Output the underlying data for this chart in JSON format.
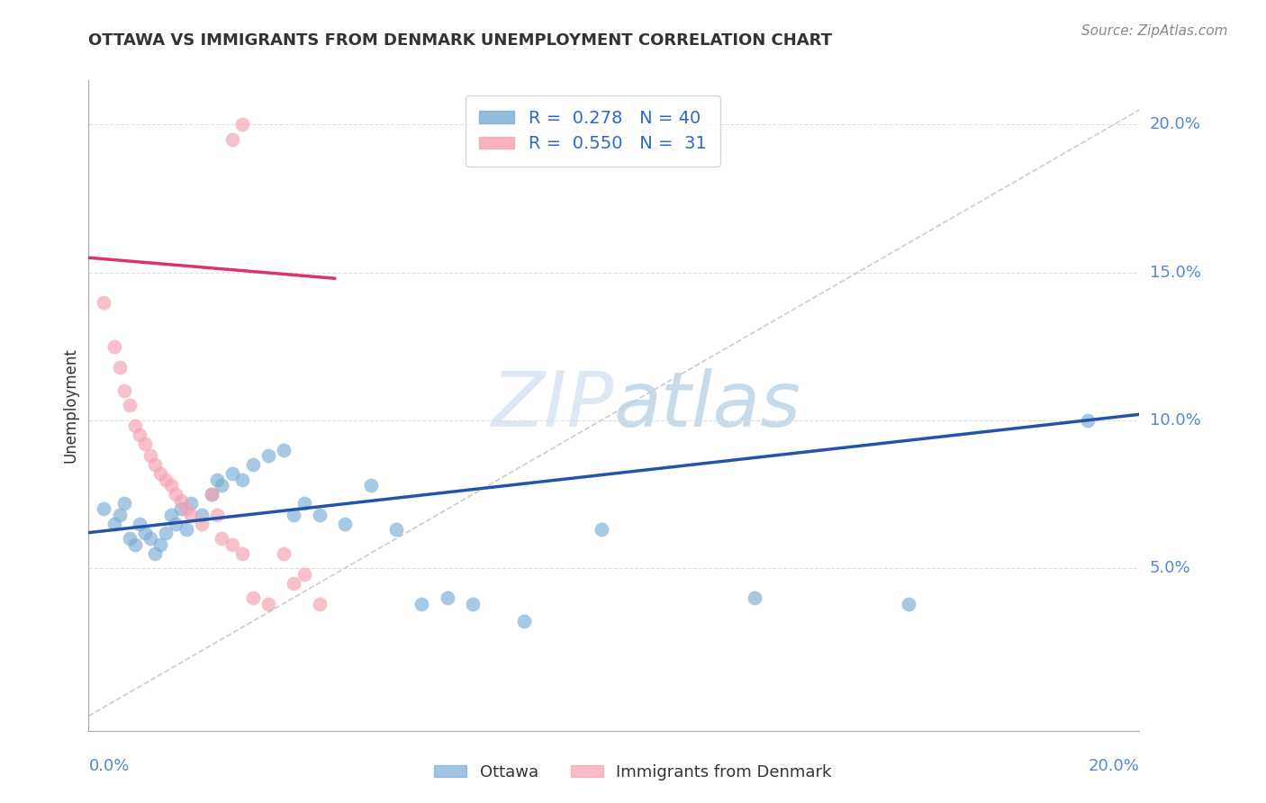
{
  "title": "OTTAWA VS IMMIGRANTS FROM DENMARK UNEMPLOYMENT CORRELATION CHART",
  "source": "Source: ZipAtlas.com",
  "ylabel": "Unemployment",
  "ytick_labels": [
    "5.0%",
    "10.0%",
    "15.0%",
    "20.0%"
  ],
  "ytick_values": [
    0.05,
    0.1,
    0.15,
    0.2
  ],
  "xlim": [
    0.0,
    0.205
  ],
  "ylim": [
    -0.005,
    0.215
  ],
  "ottawa_color": "#7aadd4",
  "denmark_color": "#f4a0b0",
  "trendline_ottawa_color": "#2255aa",
  "trendline_denmark_color": "#dd3366",
  "diagonal_color": "#cccccc",
  "watermark_zip": "ZIP",
  "watermark_atlas": "atlas",
  "background_color": "#ffffff",
  "grid_color": "#dddddd",
  "ottawa_points": [
    [
      0.003,
      0.07
    ],
    [
      0.005,
      0.065
    ],
    [
      0.006,
      0.068
    ],
    [
      0.007,
      0.072
    ],
    [
      0.008,
      0.06
    ],
    [
      0.009,
      0.058
    ],
    [
      0.01,
      0.065
    ],
    [
      0.011,
      0.062
    ],
    [
      0.012,
      0.06
    ],
    [
      0.013,
      0.055
    ],
    [
      0.014,
      0.058
    ],
    [
      0.015,
      0.062
    ],
    [
      0.016,
      0.068
    ],
    [
      0.017,
      0.065
    ],
    [
      0.018,
      0.07
    ],
    [
      0.019,
      0.063
    ],
    [
      0.02,
      0.072
    ],
    [
      0.022,
      0.068
    ],
    [
      0.024,
      0.075
    ],
    [
      0.025,
      0.08
    ],
    [
      0.026,
      0.078
    ],
    [
      0.028,
      0.082
    ],
    [
      0.03,
      0.08
    ],
    [
      0.032,
      0.085
    ],
    [
      0.035,
      0.088
    ],
    [
      0.038,
      0.09
    ],
    [
      0.04,
      0.068
    ],
    [
      0.042,
      0.072
    ],
    [
      0.045,
      0.068
    ],
    [
      0.05,
      0.065
    ],
    [
      0.055,
      0.078
    ],
    [
      0.06,
      0.063
    ],
    [
      0.065,
      0.038
    ],
    [
      0.07,
      0.04
    ],
    [
      0.075,
      0.038
    ],
    [
      0.085,
      0.032
    ],
    [
      0.1,
      0.063
    ],
    [
      0.13,
      0.04
    ],
    [
      0.16,
      0.038
    ],
    [
      0.195,
      0.1
    ]
  ],
  "denmark_points": [
    [
      0.003,
      0.14
    ],
    [
      0.005,
      0.125
    ],
    [
      0.006,
      0.118
    ],
    [
      0.007,
      0.11
    ],
    [
      0.008,
      0.105
    ],
    [
      0.009,
      0.098
    ],
    [
      0.01,
      0.095
    ],
    [
      0.011,
      0.092
    ],
    [
      0.012,
      0.088
    ],
    [
      0.013,
      0.085
    ],
    [
      0.014,
      0.082
    ],
    [
      0.015,
      0.08
    ],
    [
      0.016,
      0.078
    ],
    [
      0.017,
      0.075
    ],
    [
      0.018,
      0.073
    ],
    [
      0.019,
      0.07
    ],
    [
      0.02,
      0.068
    ],
    [
      0.022,
      0.065
    ],
    [
      0.024,
      0.075
    ],
    [
      0.025,
      0.068
    ],
    [
      0.026,
      0.06
    ],
    [
      0.028,
      0.058
    ],
    [
      0.03,
      0.055
    ],
    [
      0.032,
      0.04
    ],
    [
      0.035,
      0.038
    ],
    [
      0.038,
      0.055
    ],
    [
      0.04,
      0.045
    ],
    [
      0.042,
      0.048
    ],
    [
      0.028,
      0.195
    ],
    [
      0.03,
      0.2
    ],
    [
      0.045,
      0.038
    ]
  ],
  "ottawa_trend_x": [
    0.0,
    0.205
  ],
  "ottawa_trend_y": [
    0.062,
    0.102
  ],
  "denmark_trend_x": [
    0.0,
    0.048
  ],
  "denmark_trend_y": [
    0.155,
    0.148
  ],
  "legend_entries": [
    {
      "label": "R =  0.278   N = 40",
      "color": "#7aadd4"
    },
    {
      "label": "R =  0.550   N =  31",
      "color": "#f4a0b0"
    }
  ],
  "bottom_legend": [
    {
      "label": "Ottawa",
      "color": "#7aadd4"
    },
    {
      "label": "Immigrants from Denmark",
      "color": "#f4a0b0"
    }
  ]
}
